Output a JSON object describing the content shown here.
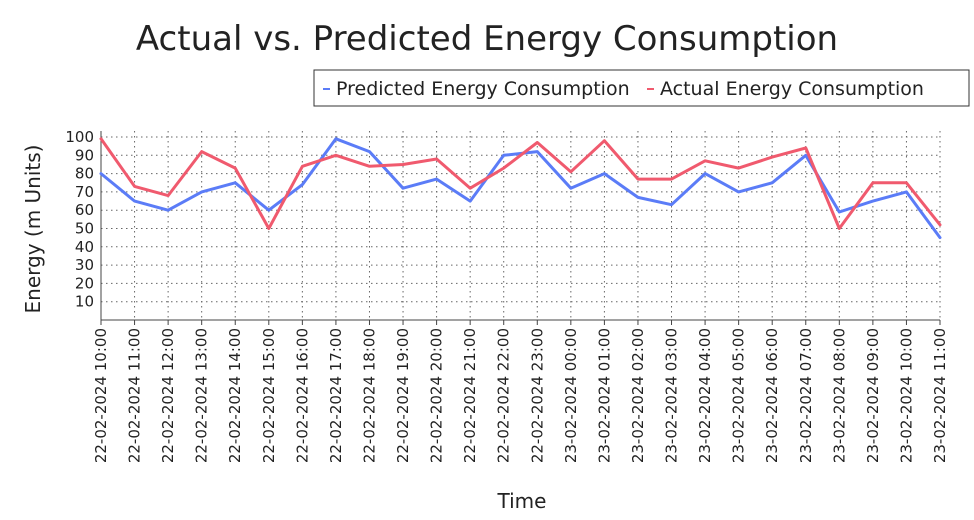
{
  "chart_data": {
    "type": "line",
    "title": "Actual vs. Predicted Energy Consumption",
    "xlabel": "Time",
    "ylabel": "Energy (m Units)",
    "ylim": [
      0,
      100
    ],
    "yticks": [
      10,
      20,
      30,
      40,
      50,
      60,
      70,
      80,
      90,
      100
    ],
    "grid": true,
    "legend_position": "top-right",
    "categories": [
      "22-02-2024 10:00",
      "22-02-2024 11:00",
      "22-02-2024 12:00",
      "22-02-2024 13:00",
      "22-02-2024 14:00",
      "22-02-2024 15:00",
      "22-02-2024 16:00",
      "22-02-2024 17:00",
      "22-02-2024 18:00",
      "22-02-2024 19:00",
      "22-02-2024 20:00",
      "22-02-2024 21:00",
      "22-02-2024 22:00",
      "22-02-2024 23:00",
      "23-02-2024 00:00",
      "23-02-2024 01:00",
      "23-02-2024 02:00",
      "23-02-2024 03:00",
      "23-02-2024 04:00",
      "23-02-2024 05:00",
      "23-02-2024 06:00",
      "23-02-2024 07:00",
      "23-02-2024 08:00",
      "23-02-2024 09:00",
      "23-02-2024 10:00",
      "23-02-2024 11:00"
    ],
    "series": [
      {
        "name": "Predicted Energy Consumption",
        "color": "#5b7cf7",
        "values": [
          80,
          65,
          60,
          70,
          75,
          60,
          74,
          99,
          92,
          72,
          77,
          65,
          90,
          92,
          72,
          80,
          67,
          63,
          80,
          70,
          75,
          90,
          59,
          65,
          70,
          45
        ]
      },
      {
        "name": "Actual Energy Consumption",
        "color": "#f05a6e",
        "values": [
          99,
          73,
          68,
          92,
          83,
          50,
          84,
          90,
          84,
          85,
          88,
          72,
          83,
          97,
          81,
          98,
          77,
          77,
          87,
          83,
          89,
          94,
          50,
          75,
          75,
          52
        ]
      }
    ]
  }
}
